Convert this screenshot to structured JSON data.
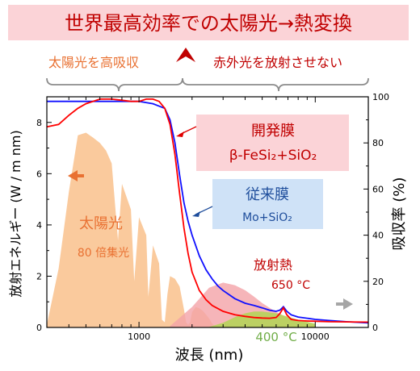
{
  "banner": {
    "title": "世界最高効率での太陽光→熱変換"
  },
  "subheads": {
    "left": "太陽光を高吸収",
    "right": "赤外光を放射させない"
  },
  "annotations": {
    "sun": "太陽光",
    "concentration": "80 倍集光",
    "radiation": "放射熱",
    "temp_hot": "650 °C",
    "temp_cool": "400 °C"
  },
  "legend": {
    "developed": {
      "title": "開発膜",
      "subtitle": "β-FeSi₂+SiO₂"
    },
    "conventional": {
      "title": "従来膜",
      "subtitle": "Mo+SiO₂"
    }
  },
  "colors": {
    "banner_bg": "#fbd3d7",
    "banner_text": "#c00000",
    "left_text": "#e97132",
    "right_text": "#c00000",
    "developed_box": "#fbd3d7",
    "conventional_box": "#cfe2f7",
    "developed_line": "#ff0000",
    "conventional_line": "#1010ff",
    "solar_fill": "#f9c18c",
    "emission_650_fill": "#f4a3a8",
    "emission_400_fill": "#b6d35a",
    "left_arrow": "#e97132",
    "right_arrow": "#a6a6a6",
    "axis_text": "#000000"
  },
  "chart_data": {
    "type": "line",
    "xlabel": "波長 (nm)",
    "ylabel_left": "放射エネルギー (W / m nm)",
    "ylabel_right": "吸収率 (%)",
    "x_scale": "log",
    "xlim": [
      300,
      20000
    ],
    "ylim_left": [
      0,
      9
    ],
    "ylim_right": [
      0,
      100
    ],
    "x_ticks": [
      1000,
      10000
    ],
    "x_tick_labels": [
      "1000",
      "10000"
    ],
    "y_left_ticks": [
      0,
      2,
      4,
      6,
      8
    ],
    "y_left_tick_labels": [
      "0",
      "2",
      "4",
      "6",
      "8"
    ],
    "y_right_ticks": [
      0,
      20,
      40,
      60,
      80,
      100
    ],
    "y_right_tick_labels": [
      "0",
      "20",
      "40",
      "60",
      "80",
      "100"
    ],
    "series": [
      {
        "name": "開発膜",
        "axis": "right",
        "x": [
          300,
          350,
          400,
          450,
          500,
          600,
          700,
          800,
          900,
          1000,
          1100,
          1200,
          1300,
          1400,
          1500,
          1600,
          1700,
          1800,
          1900,
          2000,
          2200,
          2400,
          2600,
          3000,
          3500,
          4000,
          4500,
          5000,
          5500,
          6000,
          6300,
          6600,
          6900,
          7300,
          8000,
          9000,
          10000,
          12000,
          15000,
          20000
        ],
        "values": [
          87,
          88,
          92,
          95,
          97,
          99,
          99,
          98.5,
          98,
          98,
          99,
          99,
          98,
          95,
          88,
          75,
          58,
          43,
          32,
          24,
          16,
          12,
          9.5,
          7,
          5.5,
          4.8,
          4.3,
          4.1,
          4,
          4.3,
          6,
          8.5,
          5.5,
          3.5,
          3,
          2.8,
          2.7,
          2.5,
          2.4,
          2.3
        ]
      },
      {
        "name": "従来膜",
        "axis": "right",
        "x": [
          300,
          400,
          500,
          600,
          700,
          800,
          1000,
          1200,
          1400,
          1500,
          1600,
          1700,
          1800,
          1900,
          2000,
          2200,
          2400,
          2600,
          2800,
          3000,
          3500,
          4000,
          4500,
          5000,
          5500,
          6000,
          6300,
          6600,
          6900,
          7300,
          8000,
          9000,
          10000,
          12000,
          15000,
          20000
        ],
        "values": [
          98,
          98,
          98,
          98,
          98,
          98,
          98,
          97,
          95,
          90,
          80,
          66,
          54,
          46,
          40,
          31,
          25,
          21,
          18,
          16,
          12.5,
          10.5,
          9.5,
          8.5,
          7.5,
          7,
          7.5,
          9,
          7,
          5.5,
          4.5,
          4,
          3.5,
          3,
          2.5,
          2
        ]
      },
      {
        "name": "太陽光",
        "axis": "left",
        "x": [
          300,
          350,
          400,
          450,
          500,
          550,
          600,
          650,
          700,
          760,
          800,
          900,
          940,
          1000,
          1100,
          1130,
          1200,
          1300,
          1350,
          1400,
          1450,
          1500,
          1600,
          1700,
          1800,
          1850,
          1900,
          1950,
          2000,
          2100,
          2200,
          2300,
          2400,
          2500,
          2600,
          2700,
          2800,
          3000,
          3500,
          4000
        ],
        "values": [
          0.1,
          2.3,
          5.3,
          7.5,
          7.6,
          7.4,
          7.2,
          6.9,
          6.4,
          3.4,
          5.6,
          4.6,
          1.8,
          4.3,
          3.6,
          1.2,
          3.2,
          2.5,
          0.3,
          0.2,
          1.3,
          2.0,
          1.9,
          1.6,
          0.7,
          0.2,
          0.1,
          0.2,
          0.6,
          0.8,
          0.75,
          0.65,
          0.5,
          0.35,
          0.15,
          0.05,
          0.02,
          0.05,
          0.06,
          0.04
        ]
      },
      {
        "name": "650 °C",
        "axis": "left",
        "x": [
          1500,
          2000,
          2500,
          3000,
          3500,
          4000,
          4500,
          5000,
          6000,
          7000,
          8000,
          10000
        ],
        "values": [
          0.05,
          0.8,
          1.55,
          1.75,
          1.65,
          1.45,
          1.2,
          0.95,
          0.6,
          0.38,
          0.25,
          0.1
        ]
      },
      {
        "name": "400 °C",
        "axis": "left",
        "x": [
          2500,
          3000,
          3500,
          4000,
          4500,
          5000,
          6000,
          7000,
          8000,
          10000
        ],
        "values": [
          0.02,
          0.18,
          0.4,
          0.55,
          0.62,
          0.62,
          0.55,
          0.42,
          0.3,
          0.15
        ]
      }
    ]
  }
}
